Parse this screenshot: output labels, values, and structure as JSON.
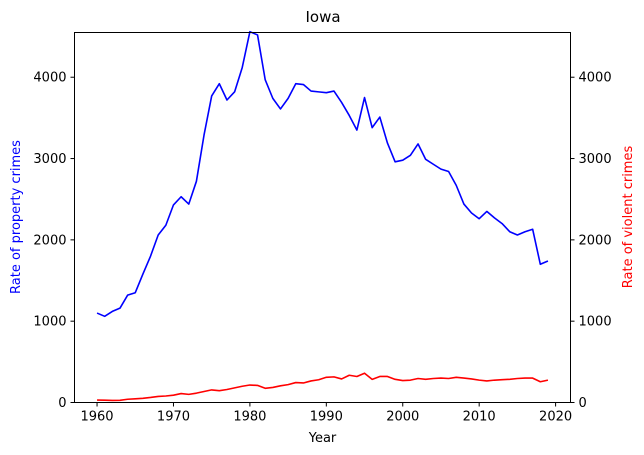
{
  "chart_data": {
    "type": "line",
    "title": "Iowa",
    "xlabel": "Year",
    "ylabel_left": "Rate of property crimes",
    "ylabel_right": "Rate of violent crimes",
    "xlim": [
      1957.05,
      2021.95
    ],
    "ylim_left": [
      0,
      4550
    ],
    "ylim_right": [
      0,
      4550
    ],
    "x_ticks": [
      1960,
      1970,
      1980,
      1990,
      2000,
      2010,
      2020
    ],
    "y_ticks_left": [
      0,
      1000,
      2000,
      3000,
      4000
    ],
    "y_ticks_right": [
      0,
      1000,
      2000,
      3000,
      4000
    ],
    "grid": false,
    "colors": {
      "property": "#0000ff",
      "violent": "#ff0000",
      "left_label": "#0000ff",
      "right_label": "#ff0000"
    },
    "x": [
      1960,
      1961,
      1962,
      1963,
      1964,
      1965,
      1966,
      1967,
      1968,
      1969,
      1970,
      1971,
      1972,
      1973,
      1974,
      1975,
      1976,
      1977,
      1978,
      1979,
      1980,
      1981,
      1982,
      1983,
      1984,
      1985,
      1986,
      1987,
      1988,
      1989,
      1990,
      1991,
      1992,
      1993,
      1994,
      1995,
      1996,
      1997,
      1998,
      1999,
      2000,
      2001,
      2002,
      2003,
      2004,
      2005,
      2006,
      2007,
      2008,
      2009,
      2010,
      2011,
      2012,
      2013,
      2014,
      2015,
      2016,
      2017,
      2018,
      2019
    ],
    "series": [
      {
        "axis": "left",
        "values": [
          1100,
          1060,
          1120,
          1160,
          1320,
          1350,
          1580,
          1800,
          2060,
          2180,
          2430,
          2530,
          2440,
          2720,
          3290,
          3770,
          3920,
          3720,
          3820,
          4120,
          4560,
          4520,
          3970,
          3740,
          3610,
          3740,
          3920,
          3910,
          3830,
          3820,
          3810,
          3830,
          3690,
          3530,
          3350,
          3750,
          3380,
          3510,
          3190,
          2960,
          2980,
          3040,
          3180,
          2990,
          2930,
          2870,
          2840,
          2670,
          2440,
          2330,
          2260,
          2350,
          2270,
          2200,
          2100,
          2060,
          2100,
          2130,
          1700,
          1740
        ]
      },
      {
        "axis": "right",
        "values": [
          30,
          28,
          25,
          27,
          40,
          45,
          52,
          62,
          75,
          80,
          90,
          110,
          100,
          115,
          135,
          155,
          145,
          160,
          180,
          200,
          215,
          210,
          175,
          185,
          205,
          220,
          245,
          240,
          265,
          280,
          310,
          315,
          290,
          335,
          320,
          360,
          285,
          320,
          320,
          285,
          270,
          275,
          295,
          285,
          295,
          300,
          295,
          310,
          300,
          290,
          275,
          265,
          275,
          280,
          285,
          295,
          300,
          300,
          255,
          275
        ]
      }
    ]
  }
}
